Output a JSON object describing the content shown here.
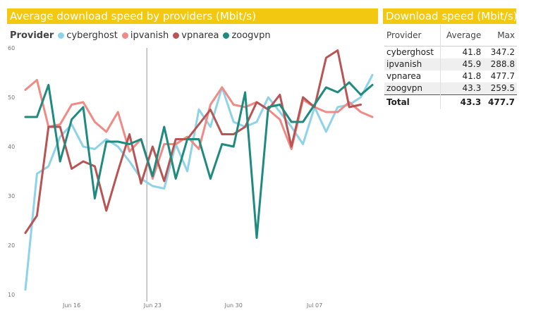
{
  "chart_data": {
    "type": "line",
    "title": "Average download speed by providers (Mbit/s)",
    "legend_title": "Provider",
    "legend_position": "top-left",
    "ylim": [
      10,
      60
    ],
    "yticks": [
      10,
      20,
      30,
      40,
      50,
      60
    ],
    "x_start": "2018-06-12",
    "x_ticks": [
      {
        "date": "2018-06-16",
        "label": "Jun 16"
      },
      {
        "date": "2018-06-23",
        "label": "Jun 23"
      },
      {
        "date": "2018-06-30",
        "label": "Jun 30"
      },
      {
        "date": "2018-07-07",
        "label": "Jul 07"
      }
    ],
    "series": [
      {
        "name": "cyberghost",
        "color": "#8fd3e8",
        "values": [
          11,
          34.5,
          36,
          42,
          44.5,
          40,
          39.5,
          41.5,
          40,
          37,
          33.5,
          32,
          31.5,
          40.5,
          35,
          47.5,
          44,
          52,
          45,
          44,
          45,
          50,
          47,
          44,
          40.5,
          48,
          43,
          48,
          48.5,
          50,
          54.5
        ]
      },
      {
        "name": "ipvanish",
        "color": "#f08a84",
        "values": [
          51.5,
          53.5,
          44,
          44.5,
          48.5,
          49,
          45,
          43,
          47,
          39,
          41.5,
          33.5,
          40.5,
          40.5,
          42,
          39.5,
          48.5,
          52,
          48.5,
          48,
          49,
          47.5,
          45.5,
          39.5,
          49.5,
          48,
          47,
          47,
          49,
          47,
          46
        ]
      },
      {
        "name": "vpnarea",
        "color": "#b85454",
        "values": [
          22.5,
          26,
          44,
          44,
          35.5,
          37,
          36,
          27,
          35,
          42.5,
          32.5,
          40,
          33,
          41.5,
          41.5,
          44.5,
          47.5,
          42.5,
          42.5,
          44,
          49,
          47.5,
          50.5,
          40,
          50,
          48,
          58,
          59.5,
          48,
          48.5
        ]
      },
      {
        "name": "zoogvpn",
        "color": "#1f8a7e",
        "values": [
          46,
          46,
          52.5,
          37,
          45.5,
          48,
          29.5,
          41,
          41,
          40.5,
          41.5,
          34,
          44,
          33.5,
          41.5,
          41.5,
          33.5,
          40.5,
          40,
          51,
          21.5,
          48,
          48.5,
          45,
          45,
          48.5,
          52,
          51,
          53,
          50.5,
          52.5
        ]
      }
    ]
  },
  "table": {
    "title": "Download speed (Mbit/s)",
    "headers": {
      "provider": "Provider",
      "average": "Average",
      "max": "Max"
    },
    "rows": [
      {
        "provider": "cyberghost",
        "average": "41.8",
        "max": "347.2"
      },
      {
        "provider": "ipvanish",
        "average": "45.9",
        "max": "288.8"
      },
      {
        "provider": "vpnarea",
        "average": "41.8",
        "max": "477.7"
      },
      {
        "provider": "zoogvpn",
        "average": "43.3",
        "max": "259.5"
      }
    ],
    "total": {
      "label": "Total",
      "average": "43.3",
      "max": "477.7"
    }
  }
}
